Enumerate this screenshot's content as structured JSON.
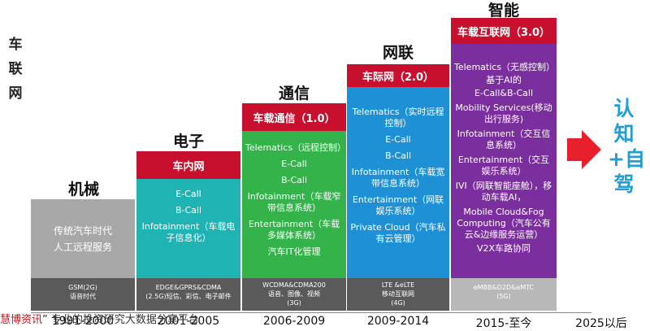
{
  "y_axis_label": "车联网",
  "stages": [
    {
      "title": "机械",
      "header": "",
      "items": [
        "传统汽车时代",
        "人工远程服务"
      ],
      "network": [
        "GSM(2G)",
        "语音时代"
      ],
      "year": "1991-2000",
      "color": "#a8a8a8"
    },
    {
      "title": "电子",
      "header": "车内网",
      "items": [
        "E-Call",
        "B-Call",
        "Infotainment（车载电子信息化）"
      ],
      "network": [
        "EDGE&GPRS&CDMA",
        "(2.5G)短信、彩信、电子邮件"
      ],
      "year": "2001-2005",
      "color": "#1fb3b3"
    },
    {
      "title": "通信",
      "header": "车载通信（1.0）",
      "items": [
        "Telematics（远程控制）",
        "E-Call",
        "B-Call",
        "Infotainment（车载窄带信息系统）",
        "Entertainment（车载多媒体系统）",
        "汽车IT化管理"
      ],
      "network": [
        "WCDMA&CDMA200",
        "语音、图像、视频",
        "(3G)"
      ],
      "year": "2006-2009",
      "color": "#33b34a"
    },
    {
      "title": "网联",
      "header": "车际网（2.0）",
      "items": [
        "Telematics（实时远程控制）",
        "E-Call",
        "B-Call",
        "Infotainment（车载宽带信息系统）",
        "Entertainment（网联娱乐系统）",
        "Private Cloud（汽车私有云管理）"
      ],
      "network": [
        "LTE &eLTE",
        "移动互联网",
        "(4G)"
      ],
      "year": "2009-2014",
      "color": "#1e90d6"
    },
    {
      "title": "智能",
      "header": "车载互联网（3.0）",
      "items": [
        "Telematics（无感控制）",
        "基于AI的",
        "E-Call&B-Call",
        "Mobility Services(移动出行服务)",
        "Infotainment（交互信息系统）",
        "Entertainment（交互娱乐系统）",
        "IVI（网联智能座舱），移动车载AI，",
        "Mobile Cloud&Fog Computing（汽车公有云&边缘服务运营）",
        "V2X车路协同"
      ],
      "network": [
        "eMBB&D2D&eMTC",
        "(5G)"
      ],
      "year": "2015-至今",
      "color": "#7b2f9e"
    }
  ],
  "end_year": "2025以后",
  "end_label": "认知+自驾",
  "footer_brand": "慧博资讯",
  "footer_text": "” 专业的投资研究大数据分享平台"
}
